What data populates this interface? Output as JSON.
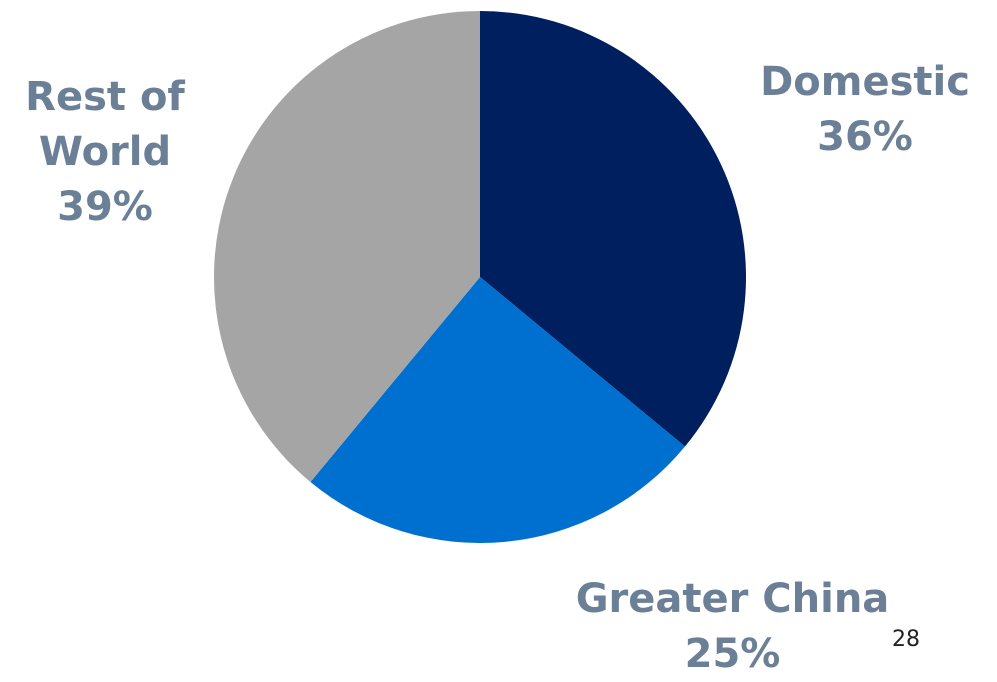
{
  "chart_data": {
    "type": "pie",
    "title": "",
    "start_angle_deg": 0,
    "direction": "clockwise",
    "slices": [
      {
        "label": "Domestic",
        "value": 36,
        "value_label": "36%",
        "color": "#001f5f"
      },
      {
        "label": "Greater China",
        "value": 25,
        "value_label": "25%",
        "color": "#0070d0"
      },
      {
        "label": "Rest of World",
        "value": 39,
        "value_label": "39%",
        "color": "#a5a5a5"
      }
    ],
    "legend": "none",
    "label_color": "#6b8096"
  },
  "labels": {
    "rest_line1": "Rest of",
    "rest_line2": "World",
    "rest_pct": "39%",
    "domestic_name": "Domestic",
    "domestic_pct": "36%",
    "china_name": "Greater China",
    "china_pct": "25%"
  },
  "page_number": "28"
}
